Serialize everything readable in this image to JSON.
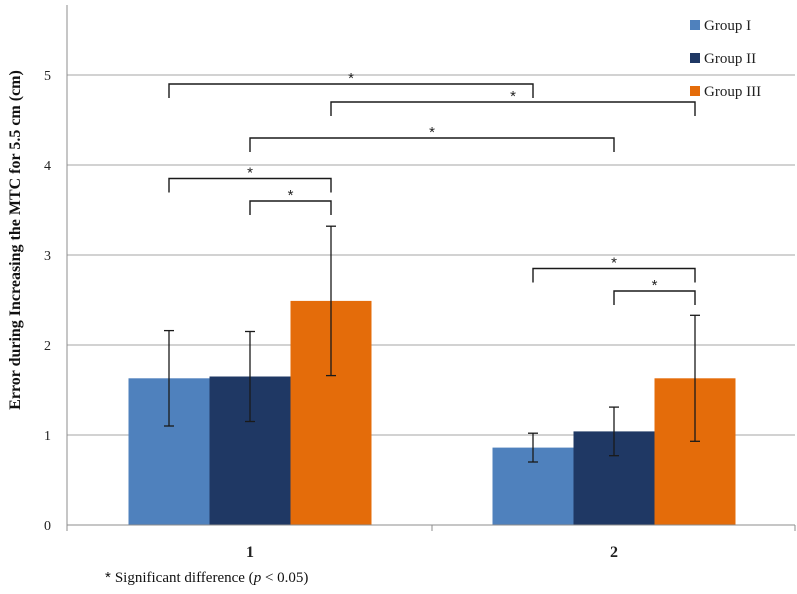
{
  "chart_data": {
    "type": "bar",
    "title": "",
    "xlabel": "",
    "ylabel": "Error during Increasing the MTC for 5.5 cm (cm)",
    "ylim": [
      0,
      5.5
    ],
    "yticks": [
      0,
      1,
      2,
      3,
      4,
      5
    ],
    "grid": true,
    "legend_position": "top-right",
    "categories": [
      "1",
      "2"
    ],
    "series": [
      {
        "name": "Group I",
        "color": "#4f81bd",
        "values": [
          1.63,
          0.86
        ],
        "errors": [
          0.53,
          0.16
        ]
      },
      {
        "name": "Group II",
        "color": "#1f3864",
        "values": [
          1.65,
          1.04
        ],
        "errors": [
          0.5,
          0.27
        ]
      },
      {
        "name": "Group III",
        "color": "#e46c0a",
        "values": [
          2.49,
          1.63
        ],
        "errors": [
          0.83,
          0.7
        ]
      }
    ],
    "significance_marker": "*",
    "significance": [
      {
        "from": [
          0,
          0
        ],
        "to": [
          1,
          0
        ],
        "level": 4.9
      },
      {
        "from": [
          0,
          2
        ],
        "to": [
          1,
          2
        ],
        "level": 4.7
      },
      {
        "from": [
          0,
          1
        ],
        "to": [
          1,
          1
        ],
        "level": 4.3
      },
      {
        "from": [
          0,
          0
        ],
        "to": [
          0,
          2
        ],
        "level": 3.85
      },
      {
        "from": [
          0,
          1
        ],
        "to": [
          0,
          2
        ],
        "level": 3.6
      },
      {
        "from": [
          1,
          0
        ],
        "to": [
          1,
          2
        ],
        "level": 2.85
      },
      {
        "from": [
          1,
          1
        ],
        "to": [
          1,
          2
        ],
        "level": 2.6
      }
    ]
  },
  "footnote": {
    "marker": "*",
    "text_before": "Significant difference (",
    "italic": "p",
    "text_after": " < 0.05)"
  }
}
